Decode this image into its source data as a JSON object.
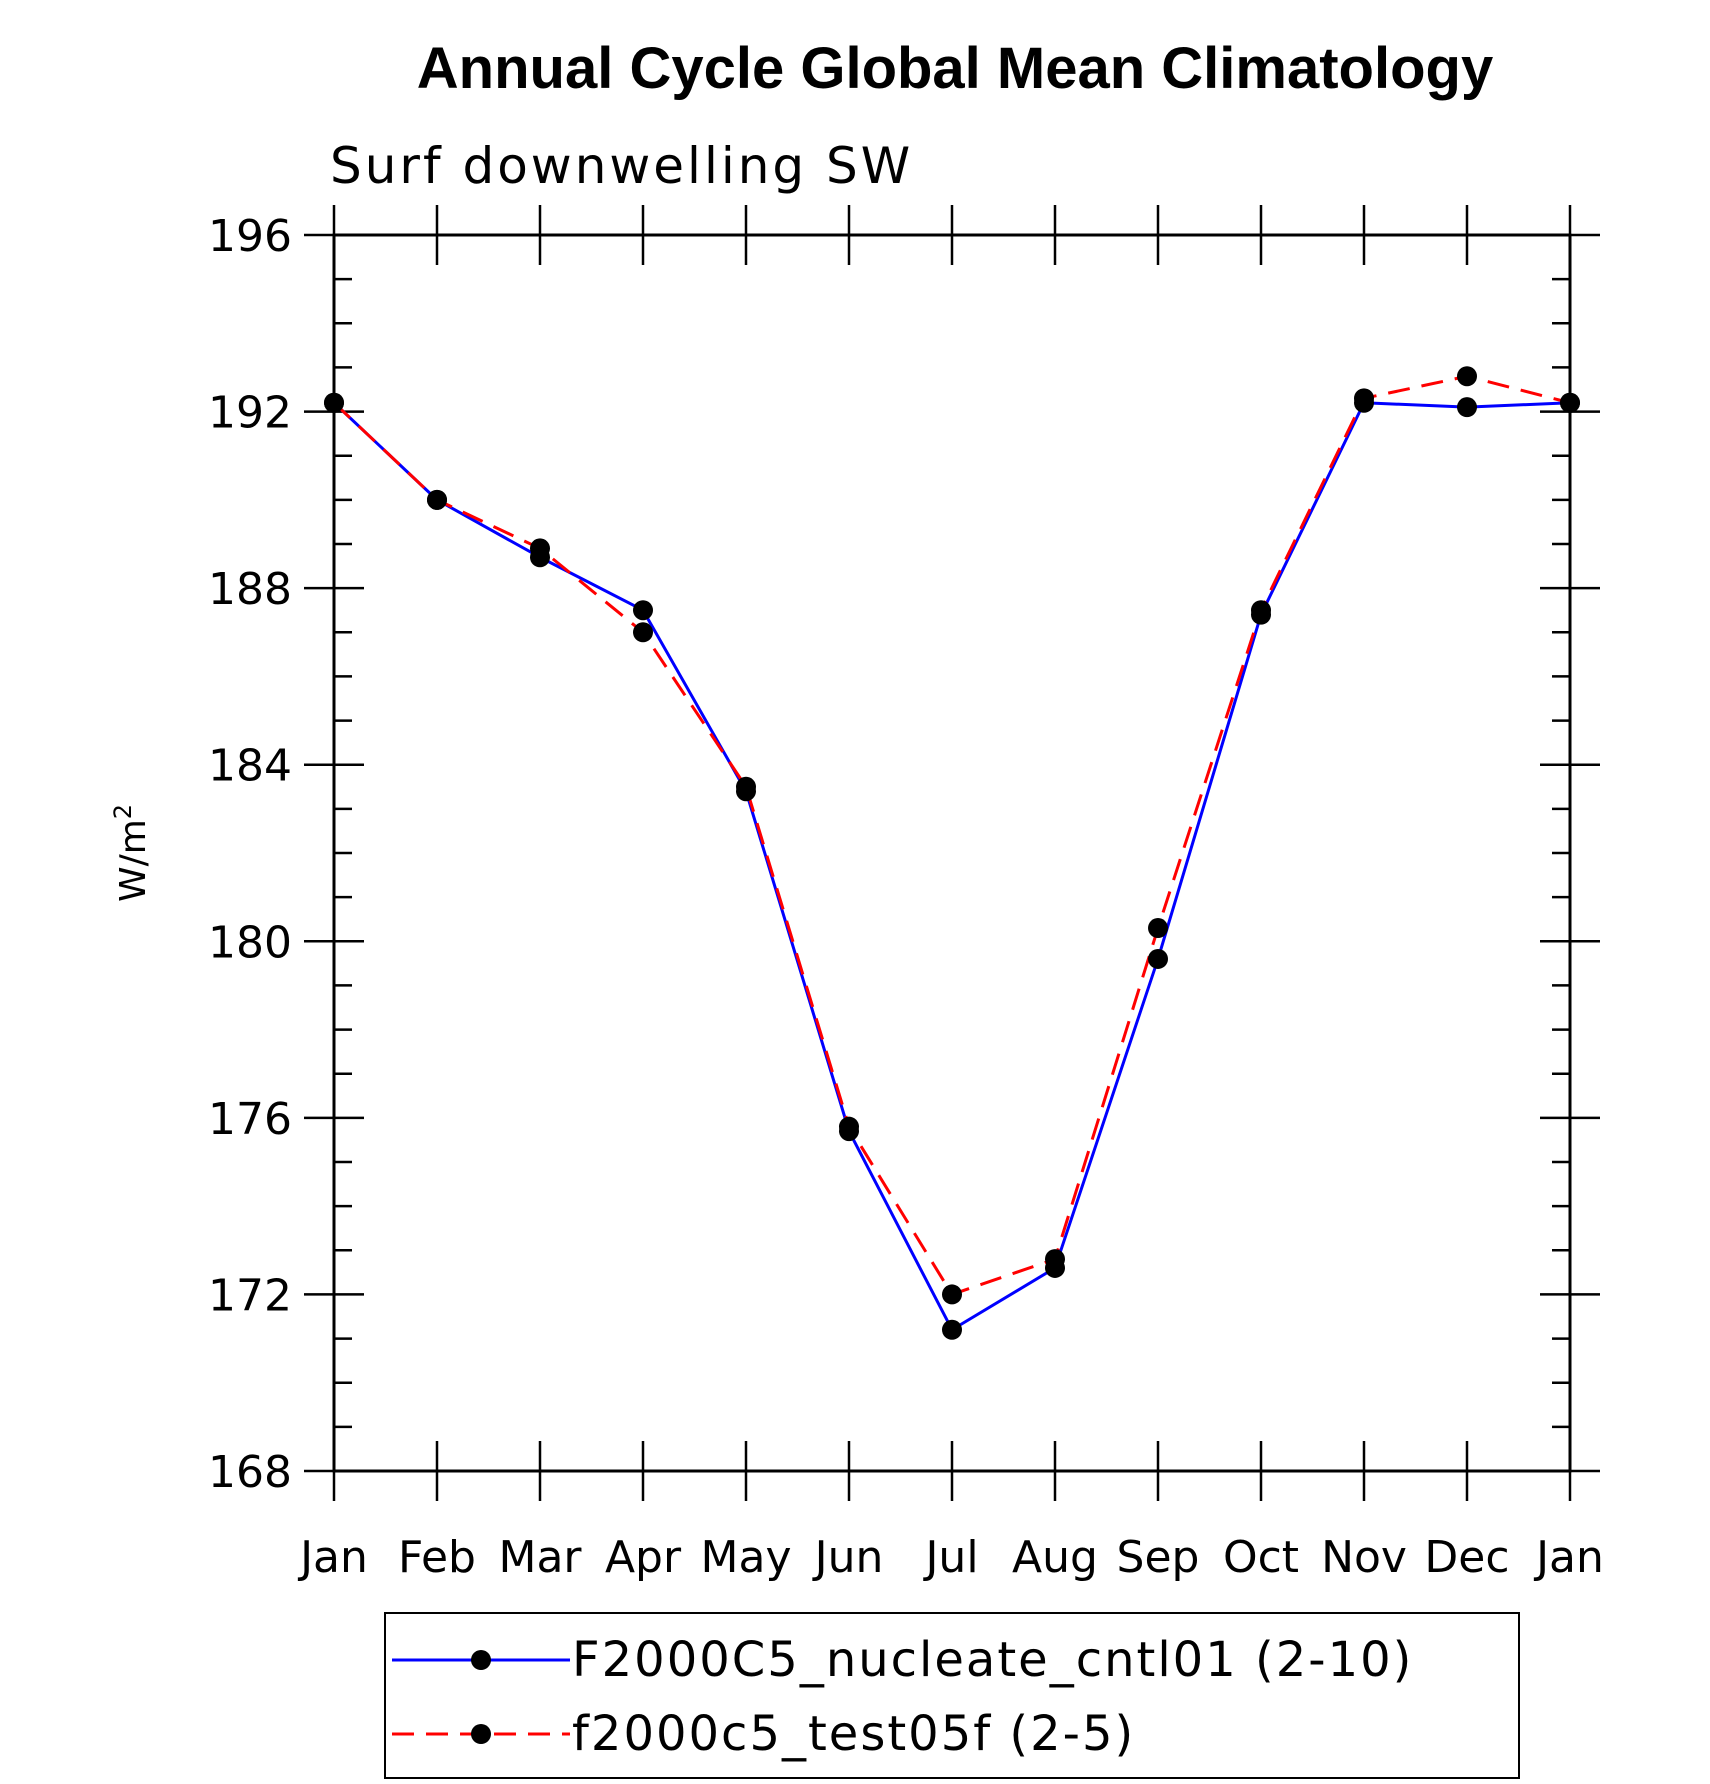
{
  "chart_data": {
    "type": "line",
    "title": "Annual Cycle Global Mean Climatology",
    "subtitle": "Surf downwelling SW",
    "ylabel": "W/m",
    "ylabel_sup": "2",
    "xlabel": "",
    "categories": [
      "Jan",
      "Feb",
      "Mar",
      "Apr",
      "May",
      "Jun",
      "Jul",
      "Aug",
      "Sep",
      "Oct",
      "Nov",
      "Dec",
      "Jan"
    ],
    "ylim": [
      168,
      196
    ],
    "yticks": [
      168,
      172,
      176,
      180,
      184,
      188,
      192,
      196
    ],
    "series": [
      {
        "name": "F2000C5_nucleate_cntl01 (2-10)",
        "color": "#0000ff",
        "style": "solid",
        "values": [
          192.2,
          190.0,
          188.7,
          187.5,
          183.4,
          175.7,
          171.2,
          172.6,
          179.6,
          187.4,
          192.2,
          192.1,
          192.2
        ]
      },
      {
        "name": "f2000c5_test05f (2-5)",
        "color": "#ff0000",
        "style": "dashed",
        "values": [
          192.2,
          190.0,
          188.9,
          187.0,
          183.5,
          175.8,
          172.0,
          172.8,
          180.3,
          187.5,
          192.3,
          192.8,
          192.2
        ]
      }
    ],
    "legend_position": "bottom"
  }
}
